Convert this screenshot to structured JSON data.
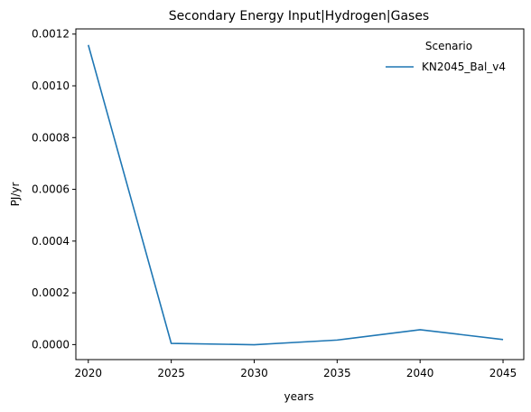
{
  "chart_data": {
    "type": "line",
    "title": "Secondary Energy Input|Hydrogen|Gases",
    "xlabel": "years",
    "ylabel": "PJ/yr",
    "x": [
      2020,
      2025,
      2030,
      2035,
      2040,
      2045
    ],
    "xticks": [
      "2020",
      "2025",
      "2030",
      "2035",
      "2040",
      "2045"
    ],
    "yticks": [
      0,
      0.0002,
      0.0004,
      0.0006,
      0.0008,
      0.001,
      0.0012
    ],
    "ytick_labels": [
      "0.0000",
      "0.0002",
      "0.0004",
      "0.0006",
      "0.0008",
      "0.0010",
      "0.0012"
    ],
    "xlim": [
      2019.25,
      2046.25
    ],
    "ylim": [
      -5.8e-05,
      0.00122
    ],
    "grid": false,
    "legend": {
      "title": "Scenario",
      "position": "top-right"
    },
    "series": [
      {
        "name": "KN2045_Bal_v4",
        "color": "#1f77b4",
        "values": [
          0.001158,
          4.5e-06,
          -5e-07,
          1.75e-05,
          5.75e-05,
          1.95e-05
        ]
      }
    ]
  }
}
